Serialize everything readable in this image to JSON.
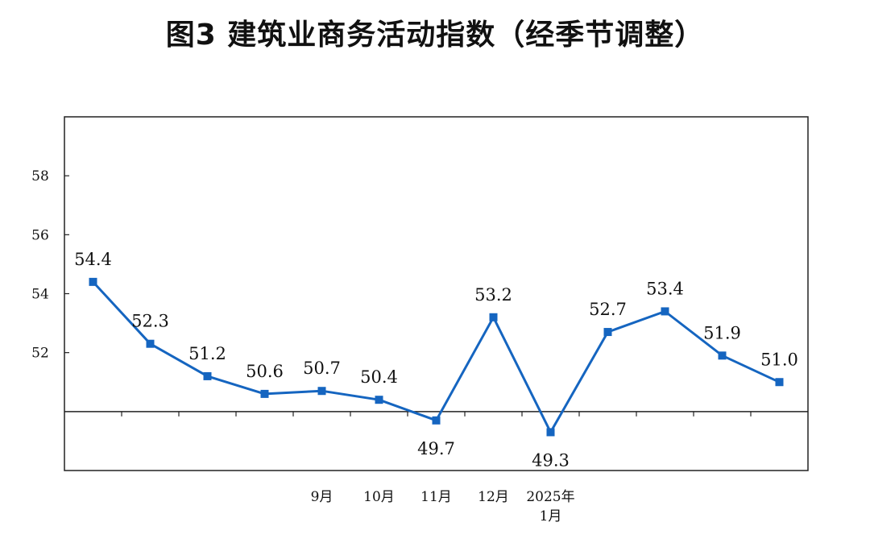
{
  "chart_data": {
    "type": "line",
    "title": "图3 建筑业商务活动指数（经季节调整）",
    "categories": [
      "",
      "",
      "",
      "",
      "9月",
      "10月",
      "11月",
      "12月",
      "2025年\n1月",
      "",
      "",
      "",
      ""
    ],
    "series": [
      {
        "values": [
          54.4,
          52.3,
          51.2,
          50.6,
          50.7,
          50.4,
          49.7,
          53.2,
          49.3,
          52.7,
          53.4,
          51.9,
          51.0
        ],
        "labels": [
          "54.4",
          "52.3",
          "51.2",
          "50.6",
          "50.7",
          "50.4",
          "49.7",
          "53.2",
          "49.3",
          "52.7",
          "53.4",
          "51.9",
          "51.0"
        ]
      }
    ],
    "yticks": [
      52,
      54,
      56,
      58
    ],
    "ylim": [
      48,
      60
    ],
    "reference_line": 50,
    "line_color": "#1565c0",
    "grid": false
  }
}
